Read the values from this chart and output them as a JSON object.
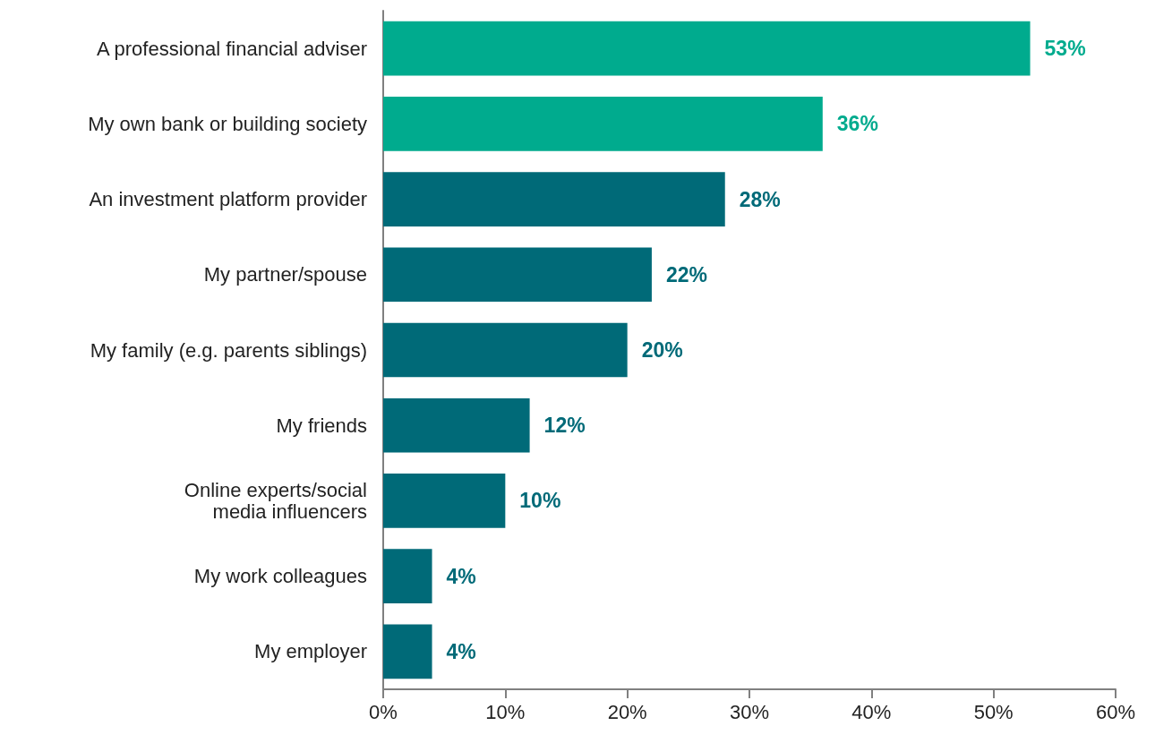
{
  "chart_data": {
    "type": "bar",
    "orientation": "horizontal",
    "categories": [
      "A professional financial adviser",
      "My own bank or building society",
      "An investment platform provider",
      "My partner/spouse",
      "My family (e.g. parents siblings)",
      "My friends",
      "Online experts/social media influencers",
      "My work colleagues",
      "My employer"
    ],
    "values": [
      53,
      36,
      28,
      22,
      20,
      12,
      10,
      4,
      4
    ],
    "colors": [
      "#00ab8e",
      "#00ab8e",
      "#006a78",
      "#006a78",
      "#006a78",
      "#006a78",
      "#006a78",
      "#006a78",
      "#006a78"
    ],
    "value_labels": [
      "53%",
      "36%",
      "28%",
      "22%",
      "20%",
      "12%",
      "10%",
      "4%",
      "4%"
    ],
    "xlim": [
      0,
      60
    ],
    "xticks": [
      {
        "value": 0,
        "label": "0%"
      },
      {
        "value": 10,
        "label": "10%"
      },
      {
        "value": 20,
        "label": "20%"
      },
      {
        "value": 30,
        "label": "30%"
      },
      {
        "value": 40,
        "label": "40%"
      },
      {
        "value": 50,
        "label": "50%"
      },
      {
        "value": 60,
        "label": "60%"
      }
    ],
    "grid": false
  }
}
